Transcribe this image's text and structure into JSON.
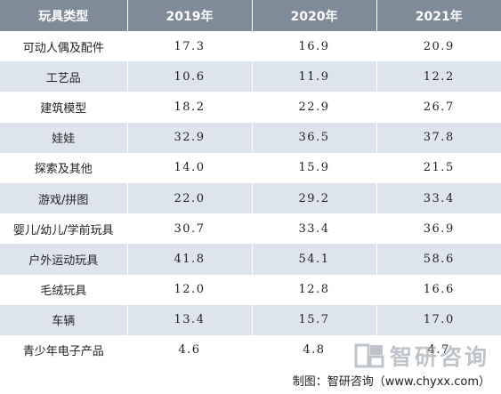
{
  "table": {
    "headers": [
      "玩具类型",
      "2019年",
      "2020年",
      "2021年"
    ],
    "rows": [
      {
        "name": "可动人偶及配件",
        "values": [
          "17.3",
          "16.9",
          "20.9"
        ]
      },
      {
        "name": "工艺品",
        "values": [
          "10.6",
          "11.9",
          "12.2"
        ]
      },
      {
        "name": "建筑模型",
        "values": [
          "18.2",
          "22.9",
          "26.7"
        ]
      },
      {
        "name": "娃娃",
        "values": [
          "32.9",
          "36.5",
          "37.8"
        ]
      },
      {
        "name": "探索及其他",
        "values": [
          "14.0",
          "15.9",
          "21.5"
        ]
      },
      {
        "name": "游戏/拼图",
        "values": [
          "22.0",
          "29.2",
          "33.4"
        ]
      },
      {
        "name": "婴儿/幼儿/学前玩具",
        "values": [
          "30.7",
          "33.4",
          "36.9"
        ]
      },
      {
        "name": "户外运动玩具",
        "values": [
          "41.8",
          "54.1",
          "58.6"
        ]
      },
      {
        "name": "毛绒玩具",
        "values": [
          "12.0",
          "12.8",
          "16.6"
        ]
      },
      {
        "name": "车辆",
        "values": [
          "13.4",
          "15.7",
          "17.0"
        ]
      },
      {
        "name": "青少年电子产品",
        "values": [
          "4.6",
          "4.8",
          "4.7"
        ]
      }
    ]
  },
  "watermark": {
    "text": "智研咨询",
    "icon": "zhiyan-logo-icon"
  },
  "source": "制图：智研咨询（www.chyxx.com）",
  "colors": {
    "header_bg": "#7f8b99",
    "stripe": "#dde4ed",
    "text": "#222222"
  }
}
